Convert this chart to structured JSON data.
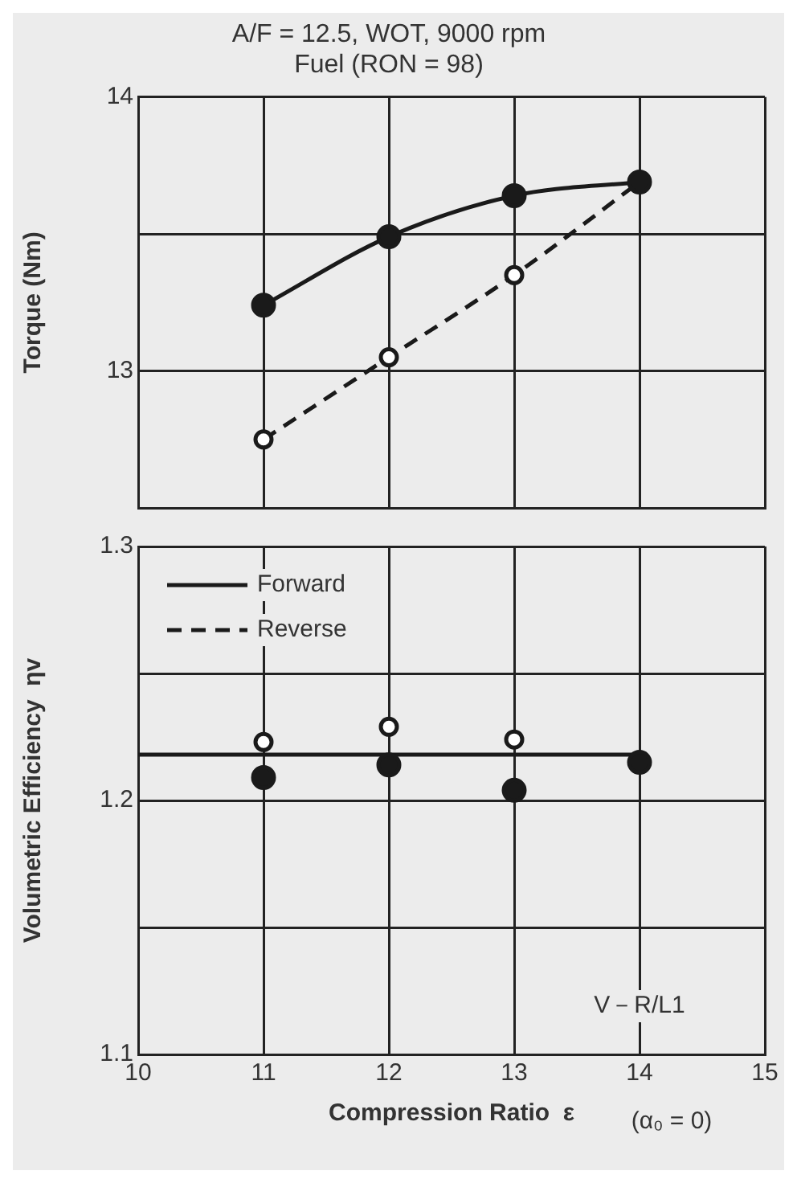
{
  "chart_data": [
    {
      "type": "line",
      "title": "A/F = 12.5, WOT, 9000 rpm",
      "subtitle": "Fuel (RON = 98)",
      "ylabel": "Torque (Nm)",
      "x": [
        11,
        12,
        13,
        14
      ],
      "xlim": [
        10,
        15
      ],
      "xticks": [
        10,
        11,
        12,
        13,
        14,
        15
      ],
      "ylim": [
        12.5,
        14
      ],
      "yticks": [
        13,
        {
          "value": 13.5,
          "label": null
        },
        14
      ],
      "tick_labels": "y",
      "grid": true,
      "marker": "circle",
      "series": [
        {
          "color": "#1a1a1a",
          "line_style": "solid",
          "values": [
            13.24,
            13.49,
            13.64,
            13.69
          ]
        },
        {
          "color": "#1a1a1a",
          "line_style": "dashed",
          "values": [
            12.75,
            13.05,
            13.35,
            13.69
          ]
        }
      ]
    },
    {
      "type": "scatter",
      "xlabel": "Compression Ratio  ε",
      "ylabel": "Volumetric Efficiency  ηv",
      "xlim": [
        10,
        15
      ],
      "xticks": [
        10,
        11,
        12,
        13,
        14,
        15
      ],
      "ylim": [
        1.1,
        1.3
      ],
      "yticks": [
        1.1,
        {
          "value": 1.15,
          "label": null
        },
        1.2,
        {
          "value": 1.25,
          "label": null
        },
        1.3
      ],
      "grid": true,
      "legend": "top left",
      "marker": "circle",
      "annotations": [
        "V－R/L1",
        "(α₀ = 0)"
      ],
      "series": [
        {
          "name": "Forward",
          "color": "#1a1a1a",
          "line_style": "solid",
          "x": [
            11,
            12,
            13,
            14
          ],
          "values": [
            1.209,
            1.214,
            1.204,
            1.215
          ]
        },
        {
          "name": "Reverse",
          "color": "#1a1a1a",
          "line_style": "dashed",
          "x": [
            11,
            12,
            13
          ],
          "values": [
            1.223,
            1.229,
            1.224
          ]
        },
        {
          "type": "line",
          "color": "#1a1a1a",
          "marker": "none",
          "x": [
            10,
            14
          ],
          "values": [
            1.218,
            1.218
          ]
        }
      ]
    }
  ]
}
